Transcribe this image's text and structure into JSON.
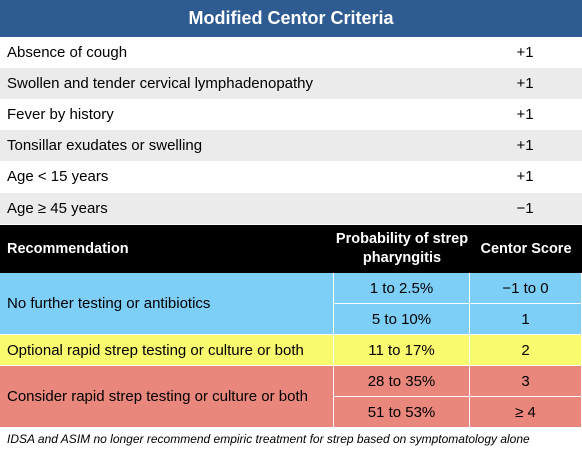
{
  "title": "Modified Centor Criteria",
  "criteria": [
    {
      "label": "Absence of cough",
      "points": "+1"
    },
    {
      "label": "Swollen and tender cervical lymphadenopathy",
      "points": "+1"
    },
    {
      "label": "Fever by history",
      "points": "+1"
    },
    {
      "label": "Tonsillar exudates or swelling",
      "points": "+1"
    },
    {
      "label": "Age < 15 years",
      "points": "+1"
    },
    {
      "label": "Age ≥ 45 years",
      "points": "−1"
    }
  ],
  "recommendation_header": {
    "recommendation": "Recommendation",
    "probability": "Probability of strep pharyngitis",
    "score": "Centor Score"
  },
  "recommendations": [
    {
      "text": "No further testing or antibiotics",
      "color": "#7ecff7",
      "rows": [
        {
          "probability": "1 to 2.5%",
          "score": "−1 to 0"
        },
        {
          "probability": "5 to 10%",
          "score": "1"
        }
      ]
    },
    {
      "text": "Optional rapid strep testing or culture or both",
      "color": "#fafa6e",
      "rows": [
        {
          "probability": "11 to 17%",
          "score": "2"
        }
      ]
    },
    {
      "text": "Consider rapid strep testing or culture or both",
      "color": "#e9877c",
      "rows": [
        {
          "probability": "28 to 35%",
          "score": "3"
        },
        {
          "probability": "51 to 53%",
          "score": "≥ 4"
        }
      ]
    }
  ],
  "footnote": "IDSA and ASIM no longer recommend empiric treatment for strep based on symptomatology alone",
  "colors": {
    "title_bg": "#2d5b92",
    "header_bg": "#000000",
    "stripe": "#ebebeb"
  }
}
